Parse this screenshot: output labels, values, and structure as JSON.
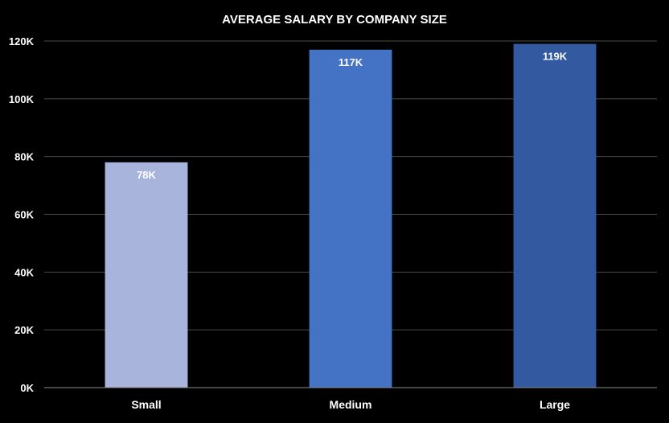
{
  "chart_data": {
    "type": "bar",
    "title": "AVERAGE SALARY BY COMPANY SIZE",
    "xlabel": "",
    "ylabel": "",
    "categories": [
      "Small",
      "Medium",
      "Large"
    ],
    "values": [
      78000,
      117000,
      119000
    ],
    "data_labels": [
      "78K",
      "117K",
      "119K"
    ],
    "bar_colors": [
      "#a9b4dc",
      "#4472c4",
      "#335aa1"
    ],
    "ylim": [
      0,
      120000
    ],
    "y_ticks": [
      0,
      20000,
      40000,
      60000,
      80000,
      100000,
      120000
    ],
    "y_tick_labels": [
      "0K",
      "20K",
      "40K",
      "60K",
      "80K",
      "100K",
      "120K"
    ],
    "grid": true,
    "legend": "none"
  }
}
